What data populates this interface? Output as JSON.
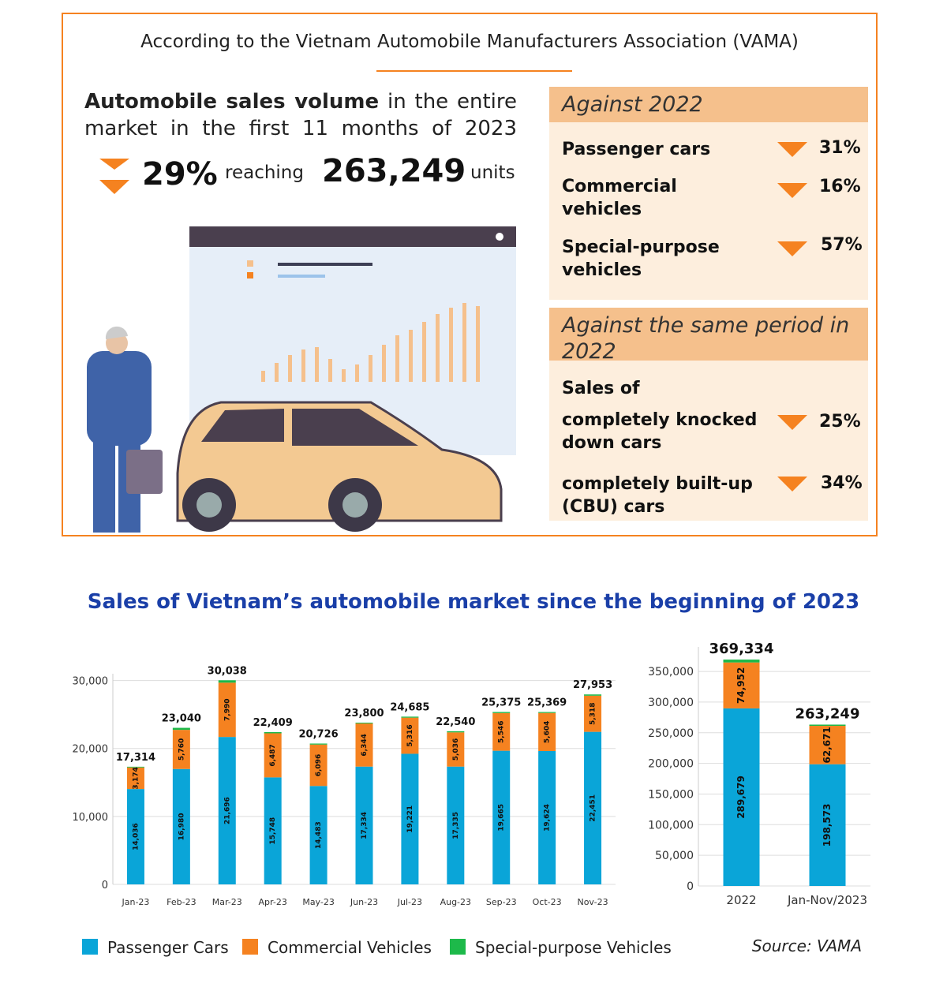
{
  "header": {
    "title": "According to the Vietnam Automobile Manufacturers Association (VAMA)"
  },
  "summary": {
    "bold": "Automobile sales volume",
    "text": "in the entire market in the first 11 months of 2023",
    "change": "29%",
    "connector": "reaching",
    "total": "263,249",
    "unit": "units"
  },
  "against_2022": {
    "title": "Against 2022",
    "items": [
      {
        "label": "Passenger cars",
        "value": "31%"
      },
      {
        "label": "Commercial vehicles",
        "value": "16%"
      },
      {
        "label": "Special-purpose vehicles",
        "value": "57%"
      }
    ]
  },
  "against_same_period": {
    "title": "Against the same period in 2022",
    "subtitle": "Sales of",
    "items": [
      {
        "label": "completely knocked down cars",
        "value": "25%"
      },
      {
        "label": "completely built-up (CBU) cars",
        "value": "34%"
      }
    ]
  },
  "charts_title": "Sales of Vietnam’s automobile market since the beginning of 2023",
  "source": "Source: VAMA",
  "chart_data": [
    {
      "type": "bar",
      "stacked": true,
      "grid": true,
      "categories": [
        "Jan-23",
        "Feb-23",
        "Mar-23",
        "Apr-23",
        "May-23",
        "Jun-23",
        "Jul-23",
        "Aug-23",
        "Sep-23",
        "Oct-23",
        "Nov-23"
      ],
      "series": [
        {
          "name": "Passenger Cars",
          "color": "#0aa5d8",
          "values": [
            14036,
            16980,
            21696,
            15748,
            14483,
            17334,
            19221,
            17335,
            19665,
            19624,
            22451
          ],
          "value_labels": [
            "14,036",
            "16,980",
            "21,696",
            "15,748",
            "14,483",
            "17,334",
            "19,221",
            "17,335",
            "19,665",
            "19,624",
            "22,451"
          ]
        },
        {
          "name": "Commercial Vehicles",
          "color": "#f58220",
          "values": [
            3174,
            5760,
            7990,
            6487,
            6096,
            6344,
            5316,
            5036,
            5546,
            5604,
            5318
          ],
          "value_labels": [
            "3,174",
            "5,760",
            "7,990",
            "6,487",
            "6,096",
            "6,344",
            "5,316",
            "5,036",
            "5,546",
            "5,604",
            "5,318"
          ]
        },
        {
          "name": "Special-purpose Vehicles",
          "color": "#1db94a",
          "values": [
            104,
            300,
            352,
            174,
            147,
            122,
            148,
            169,
            164,
            141,
            184
          ]
        }
      ],
      "totals": [
        17314,
        23040,
        30038,
        22409,
        20726,
        23800,
        24685,
        22540,
        25375,
        25369,
        27953
      ],
      "total_labels": [
        "17,314",
        "23,040",
        "30,038",
        "22,409",
        "20,726",
        "23,800",
        "24,685",
        "22,540",
        "25,375",
        "25,369",
        "27,953"
      ],
      "ylim": [
        0,
        31000
      ],
      "yticks": [
        0,
        {
          "value": 10000,
          "label": "10,000"
        },
        {
          "value": 20000,
          "label": "20,000"
        },
        {
          "value": 30000,
          "label": "30,000"
        }
      ]
    },
    {
      "type": "bar",
      "stacked": true,
      "grid": true,
      "categories": [
        "2022",
        "Jan-Nov/2023"
      ],
      "series": [
        {
          "color": "#0aa5d8",
          "values": [
            289679,
            198573
          ],
          "value_labels": [
            "289,679",
            "198,573"
          ]
        },
        {
          "color": "#f58220",
          "values": [
            74952,
            62671
          ],
          "value_labels": [
            "74,952",
            "62,671"
          ]
        },
        {
          "color": "#1db94a",
          "values": [
            4703,
            2005
          ]
        }
      ],
      "totals": [
        369334,
        263249
      ],
      "total_labels": [
        "369,334",
        "263,249"
      ],
      "ylim": [
        0,
        390000
      ],
      "yticks": [
        0,
        {
          "value": 50000,
          "label": "50,000"
        },
        {
          "value": 100000,
          "label": "100,000"
        },
        {
          "value": 150000,
          "label": "150,000"
        },
        {
          "value": 200000,
          "label": "200,000"
        },
        {
          "value": 250000,
          "label": "250,000"
        },
        {
          "value": 300000,
          "label": "300,000"
        },
        {
          "value": 350000,
          "label": "350,000"
        }
      ]
    }
  ]
}
